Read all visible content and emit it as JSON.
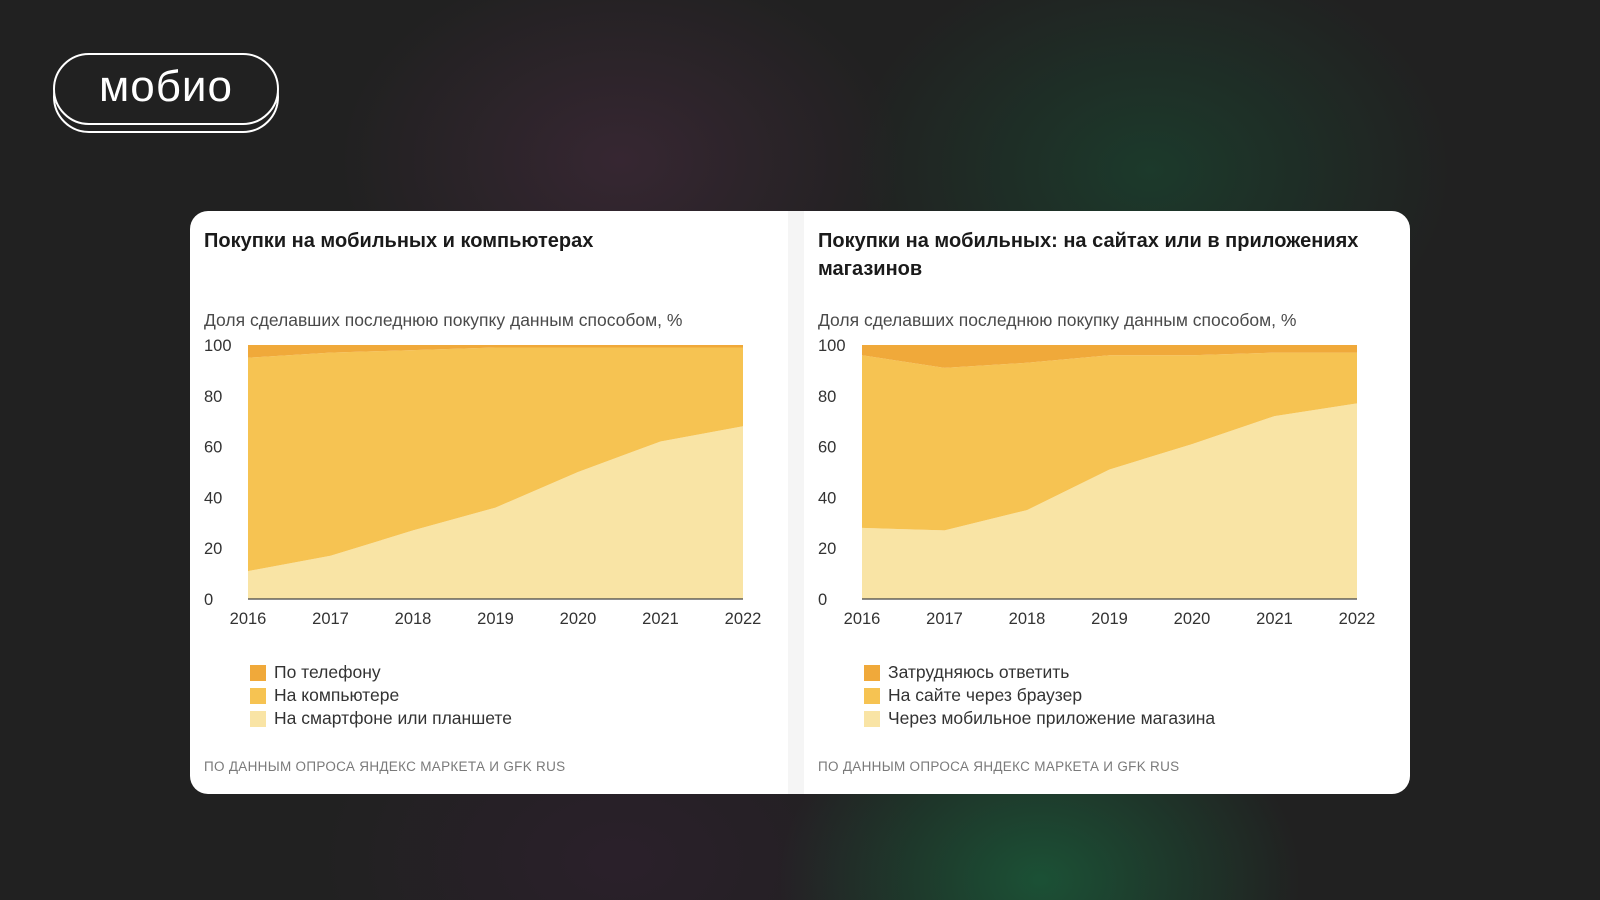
{
  "logo": {
    "text": "мобио"
  },
  "chart_data": [
    {
      "type": "area",
      "title": "Покупки на мобильных и компьютерах",
      "subtitle": "Доля сделавших последнюю покупку данным способом, %",
      "x": [
        "2016",
        "2017",
        "2018",
        "2019",
        "2020",
        "2021",
        "2022"
      ],
      "ylim": [
        0,
        100
      ],
      "yticks": [
        "0",
        "20",
        "40",
        "60",
        "80",
        "100"
      ],
      "stacked": true,
      "series": [
        {
          "name": "На смартфоне или планшете",
          "values": [
            11,
            17,
            27,
            36,
            50,
            62,
            68
          ],
          "color": "#f9e4a5"
        },
        {
          "name": "На компьютере",
          "values": [
            84,
            80,
            71,
            63,
            49,
            37,
            31
          ],
          "color": "#f6c352"
        },
        {
          "name": "По телефону",
          "values": [
            5,
            3,
            2,
            1,
            1,
            1,
            1
          ],
          "color": "#f0a93a"
        }
      ],
      "legend_order": [
        "По телефону",
        "На компьютере",
        "На смартфоне или планшете"
      ],
      "legend_position": "bottom-left",
      "grid": false,
      "source": "ПО ДАННЫМ ОПРОСА ЯНДЕКС МАРКЕТА И GFK RUS"
    },
    {
      "type": "area",
      "title": "Покупки на мобильных: на сайтах или в приложениях магазинов",
      "subtitle": "Доля сделавших последнюю покупку данным способом, %",
      "x": [
        "2016",
        "2017",
        "2018",
        "2019",
        "2020",
        "2021",
        "2022"
      ],
      "ylim": [
        0,
        100
      ],
      "yticks": [
        "0",
        "20",
        "40",
        "60",
        "80",
        "100"
      ],
      "stacked": true,
      "series": [
        {
          "name": "Через мобильное приложение магазина",
          "values": [
            28,
            27,
            35,
            51,
            61,
            72,
            77
          ],
          "color": "#f9e4a5"
        },
        {
          "name": "На сайте через браузер",
          "values": [
            68,
            64,
            58,
            45,
            35,
            25,
            20
          ],
          "color": "#f6c352"
        },
        {
          "name": "Затрудняюсь ответить",
          "values": [
            4,
            9,
            7,
            4,
            4,
            3,
            3
          ],
          "color": "#f0a93a"
        }
      ],
      "legend_order": [
        "Затрудняюсь ответить",
        "На сайте через браузер",
        "Через мобильное приложение магазина"
      ],
      "legend_position": "bottom-left",
      "grid": false,
      "source": "ПО ДАННЫМ ОПРОСА ЯНДЕКС МАРКЕТА И GFK RUS"
    }
  ]
}
